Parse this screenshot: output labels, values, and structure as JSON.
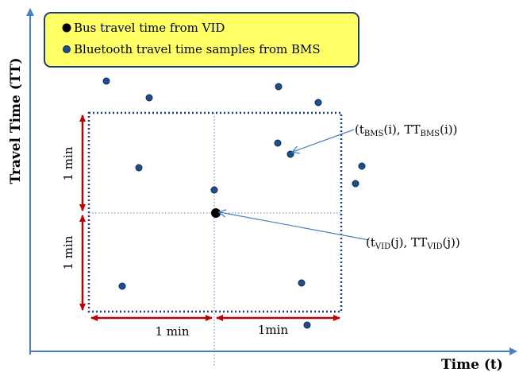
{
  "legend": {
    "items": [
      {
        "label": "Bus travel time from VID",
        "marker": "black-dot",
        "color": "#000000"
      },
      {
        "label": "Bluetooth travel time samples from BMS",
        "marker": "blue-dot",
        "color": "#1f4e8c"
      }
    ],
    "background": "#ffff66",
    "border": "#1f3d7a"
  },
  "axes": {
    "y_title": "Travel Time (TT)",
    "x_title": "Time (t)"
  },
  "dimensions": {
    "left_upper": "1 min",
    "left_lower": "1 min",
    "bottom_left": "1 min",
    "bottom_right": "1min"
  },
  "annotations": {
    "bms": {
      "open": "(t",
      "t_sub": "BMS",
      "mid": "(i), TT",
      "tt_sub": "BMS",
      "close": "(i))"
    },
    "vid": {
      "open": "(t",
      "t_sub": "VID",
      "mid": "(j), TT",
      "tt_sub": "VID",
      "close": "(j))"
    }
  },
  "colors": {
    "axis": "#4a7fc1",
    "window_border": "#1f3d7a",
    "guide": "#4a7fc1",
    "dimension_arrow": "#c00000",
    "leader": "#4a7fc1",
    "sample": "#1f4e8c"
  }
}
